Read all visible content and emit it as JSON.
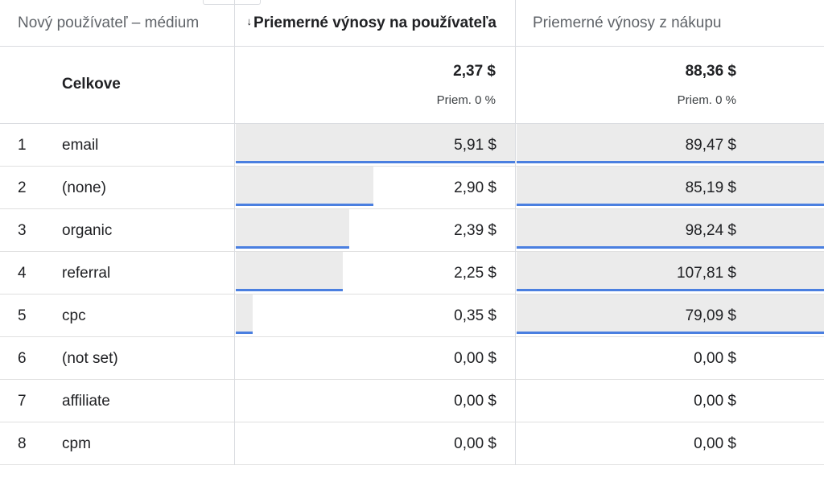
{
  "header": {
    "dimension": "Nový používateľ – médium",
    "metric1": "Priemerné výnosy na používateľa",
    "metric2": "Priemerné výnosy z nákupu",
    "sort_arrow": "↓"
  },
  "totals": {
    "label": "Celkove",
    "metric1_value": "2,37 $",
    "metric1_sub": "Priem. 0 %",
    "metric2_value": "88,36 $",
    "metric2_sub": "Priem. 0 %"
  },
  "rows": [
    {
      "idx": "1",
      "medium": "email",
      "m1": "5,91 $",
      "m1_fill": 1.0,
      "m2": "89,47 $",
      "m2_fill": 1.0
    },
    {
      "idx": "2",
      "medium": "(none)",
      "m1": "2,90 $",
      "m1_fill": 0.49,
      "m2": "85,19 $",
      "m2_fill": 1.0
    },
    {
      "idx": "3",
      "medium": "organic",
      "m1": "2,39 $",
      "m1_fill": 0.404,
      "m2": "98,24 $",
      "m2_fill": 1.0
    },
    {
      "idx": "4",
      "medium": "referral",
      "m1": "2,25 $",
      "m1_fill": 0.381,
      "m2": "107,81 $",
      "m2_fill": 1.0
    },
    {
      "idx": "5",
      "medium": "cpc",
      "m1": "0,35 $",
      "m1_fill": 0.059,
      "m2": "79,09 $",
      "m2_fill": 1.0
    },
    {
      "idx": "6",
      "medium": "(not set)",
      "m1": "0,00 $",
      "m1_fill": 0,
      "m2": "0,00 $",
      "m2_fill": 0
    },
    {
      "idx": "7",
      "medium": "affiliate",
      "m1": "0,00 $",
      "m1_fill": 0,
      "m2": "0,00 $",
      "m2_fill": 0
    },
    {
      "idx": "8",
      "medium": "cpm",
      "m1": "0,00 $",
      "m1_fill": 0,
      "m2": "0,00 $",
      "m2_fill": 0
    }
  ],
  "colors": {
    "bar_fill": "#ebebeb",
    "bar_accent": "#4a7fe0",
    "divider": "#dadce0"
  }
}
